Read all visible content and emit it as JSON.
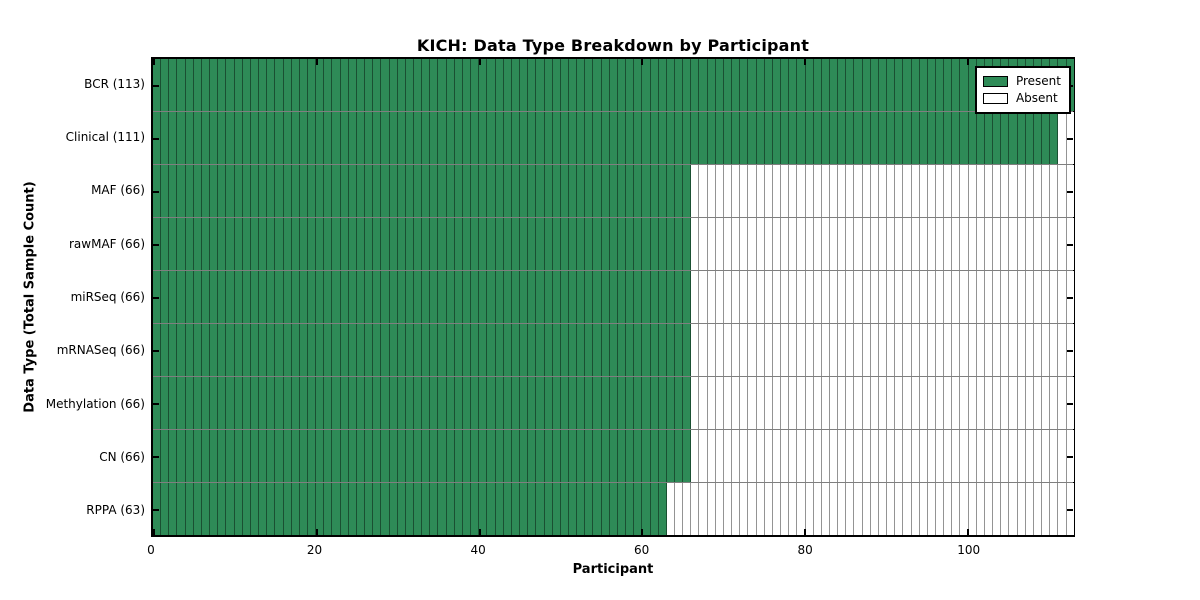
{
  "colors": {
    "present": "#2e8b57",
    "absent": "#ffffff",
    "cell_border": "rgba(0,0,0,0.42)",
    "axis": "#000000",
    "background": "#ffffff"
  },
  "chart_data": {
    "type": "heatmap",
    "title": "KICH: Data Type Breakdown by Participant",
    "xlabel": "Participant",
    "ylabel": "Data Type (Total Sample Count)",
    "x_range": [
      0,
      113
    ],
    "x_ticks": [
      0,
      20,
      40,
      60,
      80,
      100
    ],
    "n_participants": 113,
    "grid": false,
    "legend_position": "upper right",
    "rows": [
      {
        "data_type": "BCR",
        "label": "BCR (113)",
        "total_samples": 113,
        "present_count": 113
      },
      {
        "data_type": "Clinical",
        "label": "Clinical (111)",
        "total_samples": 111,
        "present_count": 111
      },
      {
        "data_type": "MAF",
        "label": "MAF (66)",
        "total_samples": 66,
        "present_count": 66
      },
      {
        "data_type": "rawMAF",
        "label": "rawMAF (66)",
        "total_samples": 66,
        "present_count": 66
      },
      {
        "data_type": "miRSeq",
        "label": "miRSeq (66)",
        "total_samples": 66,
        "present_count": 66
      },
      {
        "data_type": "mRNASeq",
        "label": "mRNASeq (66)",
        "total_samples": 66,
        "present_count": 66
      },
      {
        "data_type": "Methylation",
        "label": "Methylation (66)",
        "total_samples": 66,
        "present_count": 66
      },
      {
        "data_type": "CN",
        "label": "CN (66)",
        "total_samples": 66,
        "present_count": 66
      },
      {
        "data_type": "RPPA",
        "label": "RPPA (63)",
        "total_samples": 63,
        "present_count": 63
      }
    ],
    "legend": [
      {
        "label": "Present",
        "color": "#2e8b57"
      },
      {
        "label": "Absent",
        "color": "#ffffff"
      }
    ]
  }
}
